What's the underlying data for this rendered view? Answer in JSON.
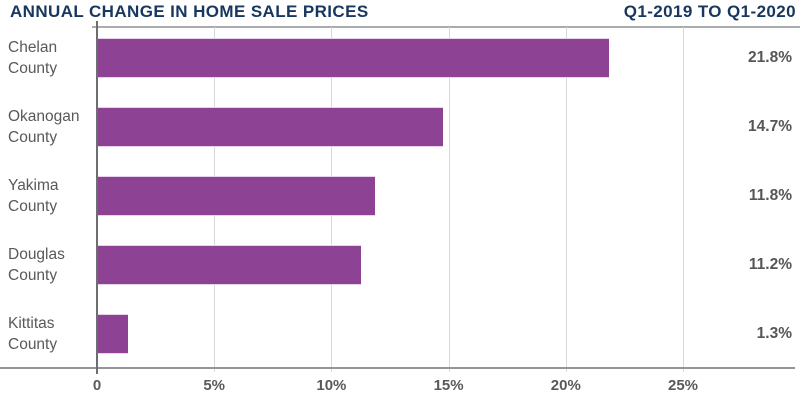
{
  "header": {
    "title": "ANNUAL CHANGE IN HOME SALE PRICES",
    "period": "Q1-2019 TO Q1-2020"
  },
  "chart_data": {
    "type": "bar",
    "orientation": "horizontal",
    "title": "ANNUAL CHANGE IN HOME SALE PRICES",
    "subtitle": "Q1-2019 TO Q1-2020",
    "categories": [
      "Chelan County",
      "Okanogan County",
      "Yakima County",
      "Douglas County",
      "Kittitas County"
    ],
    "values": [
      21.8,
      14.7,
      11.8,
      11.2,
      1.3
    ],
    "value_labels": [
      "21.8%",
      "14.7%",
      "11.8%",
      "11.2%",
      "1.3%"
    ],
    "x_ticks": [
      {
        "value": 0,
        "label": "0"
      },
      {
        "value": 5,
        "label": "5%"
      },
      {
        "value": 10,
        "label": "10%"
      },
      {
        "value": 15,
        "label": "15%"
      },
      {
        "value": 20,
        "label": "20%"
      },
      {
        "value": 25,
        "label": "25%"
      }
    ],
    "xlim": [
      0,
      29.8
    ],
    "grid": true,
    "legend": false,
    "xlabel": "",
    "ylabel": ""
  },
  "colors": {
    "bar": "#8d4293",
    "title": "#17375f",
    "category_label": "#58595b",
    "value_label": "#555658",
    "grid_line": "#d7d8d9",
    "zero_axis": "#6d6e70",
    "bottom_axis": "#939598",
    "top_frame": "#a9abad"
  }
}
